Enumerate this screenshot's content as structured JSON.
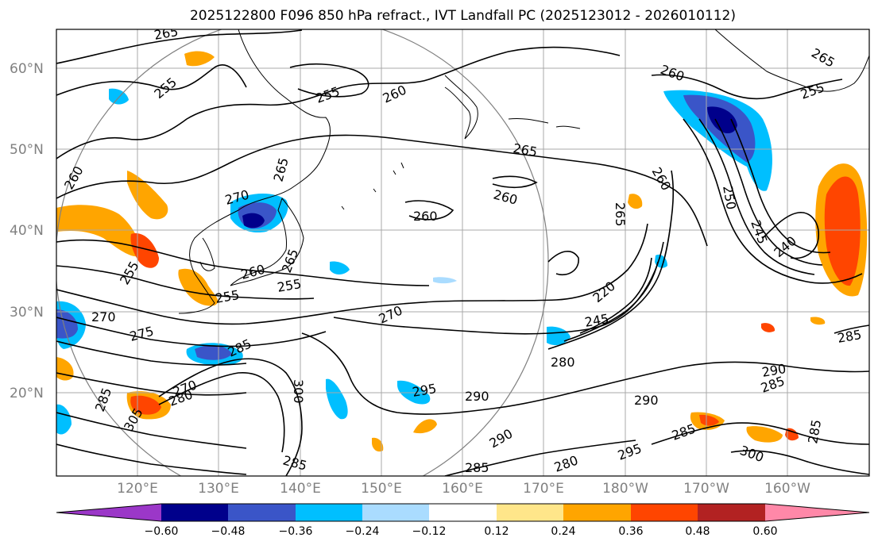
{
  "title": "2025122800 F096 850 hPa refract., IVT Landfall PC (2025123012 - 2026010112)",
  "lat_labels": [
    "60°N",
    "50°N",
    "40°N",
    "30°N",
    "20°N"
  ],
  "lon_labels": [
    "120°E",
    "130°E",
    "140°E",
    "150°E",
    "160°E",
    "170°E",
    "180°W",
    "170°W",
    "160°W"
  ],
  "colorbar": {
    "tick_labels": [
      "−0.60",
      "−0.48",
      "−0.36",
      "−0.24",
      "−0.12",
      "0.12",
      "0.24",
      "0.36",
      "0.48",
      "0.60"
    ],
    "colors": [
      "#9b37c8",
      "#00008b",
      "#3a55c8",
      "#00bfff",
      "#aadcff",
      "#ffffff",
      "#ffe68a",
      "#ffa500",
      "#ff4500",
      "#b22222",
      "#ff88a8"
    ]
  },
  "contour_labels": [
    "265",
    "255",
    "255",
    "260",
    "260",
    "265",
    "265",
    "255",
    "260",
    "265",
    "260",
    "260",
    "260",
    "270",
    "265",
    "250",
    "245",
    "240",
    "265",
    "255",
    "260",
    "255",
    "255",
    "270",
    "270",
    "220",
    "245",
    "275",
    "285",
    "270",
    "280",
    "285",
    "295",
    "290",
    "280",
    "285",
    "290",
    "290",
    "285",
    "300",
    "290",
    "285",
    "295",
    "280",
    "285",
    "300",
    "305",
    "285",
    "285"
  ]
}
